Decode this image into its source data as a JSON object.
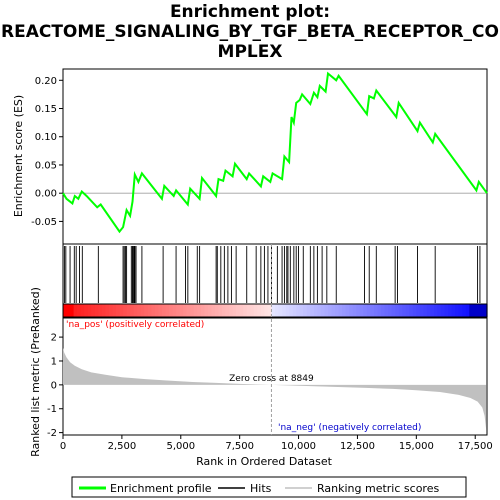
{
  "title": {
    "line1": "Enrichment plot:",
    "line2": "REACTOME_SIGNALING_BY_TGF_BETA_RECEPTOR_CO",
    "line3": "MPLEX"
  },
  "colors": {
    "es_line": "#00ff00",
    "hits": "#000000",
    "metric_fill": "#c0c0c0",
    "pos_label": "#ff0000",
    "neg_label": "#0000cc",
    "zero_line": "#a0a0a0"
  },
  "chart_data": {
    "type": "line",
    "xlabel": "Rank in Ordered Dataset",
    "ylabel_top": "Enrichment score (ES)",
    "ylabel_bottom": "Ranked list metric (PreRanked)",
    "xlim": [
      0,
      18000
    ],
    "x_ticks": [
      0,
      2500,
      5000,
      7500,
      10000,
      12500,
      15000,
      17500
    ],
    "x_tick_labels": [
      "0",
      "2,500",
      "5,000",
      "7,500",
      "10,000",
      "12,500",
      "15,000",
      "17,500"
    ],
    "es_ylim": [
      -0.09,
      0.22
    ],
    "es_ticks": [
      -0.05,
      0.0,
      0.05,
      0.1,
      0.15,
      0.2
    ],
    "es_tick_labels": [
      "-0.05",
      "0.00",
      "0.05",
      "0.10",
      "0.15",
      "0.20"
    ],
    "metric_ylim": [
      -2.1,
      2.8
    ],
    "metric_ticks": [
      -2,
      -1,
      0,
      1,
      2
    ],
    "metric_tick_labels": [
      "-2",
      "-1",
      "0",
      "1",
      "2"
    ],
    "zero_cross_rank": 8849,
    "zero_cross_label": "Zero cross at 8849",
    "pos_label": "'na_pos' (positively correlated)",
    "neg_label": "'na_neg' (negatively correlated)",
    "es_curve": [
      [
        0,
        0.0
      ],
      [
        150,
        -0.01
      ],
      [
        400,
        -0.018
      ],
      [
        500,
        -0.005
      ],
      [
        650,
        -0.01
      ],
      [
        800,
        0.003
      ],
      [
        1000,
        -0.005
      ],
      [
        1450,
        -0.025
      ],
      [
        1600,
        -0.02
      ],
      [
        2400,
        -0.068
      ],
      [
        2550,
        -0.06
      ],
      [
        2700,
        -0.03
      ],
      [
        2850,
        -0.04
      ],
      [
        2950,
        -0.015
      ],
      [
        3050,
        0.033
      ],
      [
        3200,
        0.02
      ],
      [
        3350,
        0.035
      ],
      [
        4200,
        -0.01
      ],
      [
        4300,
        0.013
      ],
      [
        4700,
        -0.005
      ],
      [
        4800,
        0.005
      ],
      [
        5300,
        -0.02
      ],
      [
        5400,
        0.008
      ],
      [
        5800,
        -0.01
      ],
      [
        5900,
        0.027
      ],
      [
        6500,
        -0.005
      ],
      [
        6600,
        0.025
      ],
      [
        6800,
        0.022
      ],
      [
        6900,
        0.04
      ],
      [
        7200,
        0.03
      ],
      [
        7300,
        0.052
      ],
      [
        7800,
        0.025
      ],
      [
        7900,
        0.035
      ],
      [
        8400,
        0.012
      ],
      [
        8500,
        0.03
      ],
      [
        8800,
        0.02
      ],
      [
        8900,
        0.035
      ],
      [
        9300,
        0.025
      ],
      [
        9400,
        0.065
      ],
      [
        9600,
        0.055
      ],
      [
        9700,
        0.135
      ],
      [
        9800,
        0.125
      ],
      [
        9900,
        0.16
      ],
      [
        10050,
        0.165
      ],
      [
        10150,
        0.175
      ],
      [
        10500,
        0.158
      ],
      [
        10650,
        0.178
      ],
      [
        10800,
        0.17
      ],
      [
        10900,
        0.19
      ],
      [
        11150,
        0.18
      ],
      [
        11250,
        0.212
      ],
      [
        11600,
        0.2
      ],
      [
        11700,
        0.208
      ],
      [
        12900,
        0.14
      ],
      [
        13000,
        0.172
      ],
      [
        13200,
        0.168
      ],
      [
        13300,
        0.182
      ],
      [
        14150,
        0.135
      ],
      [
        14250,
        0.16
      ],
      [
        15050,
        0.11
      ],
      [
        15150,
        0.125
      ],
      [
        15700,
        0.09
      ],
      [
        15800,
        0.105
      ],
      [
        17550,
        0.005
      ],
      [
        17650,
        0.02
      ],
      [
        18000,
        0.0
      ]
    ],
    "hits": [
      60,
      120,
      300,
      480,
      560,
      700,
      820,
      1500,
      2550,
      2600,
      2650,
      2700,
      2900,
      2950,
      2980,
      3020,
      3050,
      3100,
      3350,
      4250,
      4800,
      5200,
      5300,
      5700,
      5800,
      6500,
      6550,
      6700,
      6850,
      7000,
      7150,
      7350,
      7800,
      8200,
      8400,
      8550,
      8700,
      8850,
      9100,
      9300,
      9400,
      9500,
      9550,
      9650,
      9800,
      9900,
      10000,
      10200,
      10500,
      10650,
      10800,
      11000,
      11200,
      11600,
      12800,
      13000,
      13300,
      14100,
      14200,
      15050,
      15800,
      17600,
      17700
    ],
    "metric_curve": [
      [
        0,
        1.55
      ],
      [
        50,
        1.35
      ],
      [
        150,
        1.15
      ],
      [
        300,
        0.95
      ],
      [
        500,
        0.8
      ],
      [
        800,
        0.65
      ],
      [
        1200,
        0.52
      ],
      [
        1800,
        0.42
      ],
      [
        2500,
        0.32
      ],
      [
        3500,
        0.24
      ],
      [
        4500,
        0.18
      ],
      [
        5500,
        0.12
      ],
      [
        6500,
        0.08
      ],
      [
        7500,
        0.04
      ],
      [
        8849,
        0.0
      ],
      [
        10000,
        -0.04
      ],
      [
        11000,
        -0.07
      ],
      [
        12000,
        -0.1
      ],
      [
        13000,
        -0.13
      ],
      [
        14000,
        -0.17
      ],
      [
        15000,
        -0.23
      ],
      [
        16000,
        -0.3
      ],
      [
        16800,
        -0.42
      ],
      [
        17300,
        -0.55
      ],
      [
        17600,
        -0.7
      ],
      [
        17800,
        -0.95
      ],
      [
        17900,
        -1.3
      ],
      [
        17960,
        -1.85
      ]
    ]
  },
  "legend": {
    "items": [
      {
        "label": "Enrichment profile",
        "color": "#00ff00"
      },
      {
        "label": "Hits",
        "color": "#000000"
      },
      {
        "label": "Ranking metric scores",
        "color": "#c0c0c0"
      }
    ]
  }
}
